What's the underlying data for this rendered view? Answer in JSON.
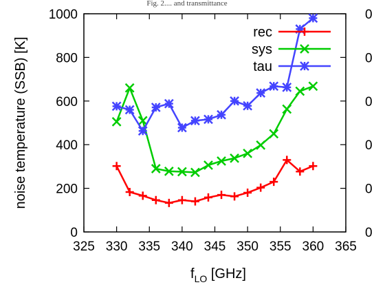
{
  "top_title_fragment": "Fig. 2.... and transmittance",
  "chart_data": {
    "type": "line",
    "xlabel": "f",
    "xlabel_sub": "LO",
    "xlabel_unit": " [GHz]",
    "ylabel": "noise temperature (SSB) [K]",
    "xlim": [
      325,
      365
    ],
    "ylim": [
      0,
      1000
    ],
    "x_ticks": [
      325,
      330,
      335,
      340,
      345,
      350,
      355,
      360,
      365
    ],
    "y_ticks": [
      0,
      200,
      400,
      600,
      800,
      1000
    ],
    "right_tick_labels": [
      "0",
      "0",
      "0",
      "0",
      "0",
      "0"
    ],
    "grid": false,
    "legend_position": "top-right",
    "series": [
      {
        "name": "rec",
        "color": "#ff0000",
        "marker": "plus",
        "x": [
          330,
          332,
          334,
          336,
          338,
          340,
          342,
          344,
          346,
          348,
          350,
          352,
          354,
          356,
          358,
          360
        ],
        "y": [
          302,
          183,
          166,
          146,
          133,
          146,
          140,
          158,
          170,
          163,
          180,
          203,
          230,
          330,
          277,
          302
        ]
      },
      {
        "name": "sys",
        "color": "#00cc00",
        "marker": "x",
        "x": [
          330,
          332,
          334,
          336,
          338,
          340,
          342,
          344,
          346,
          348,
          350,
          352,
          354,
          356,
          358,
          360
        ],
        "y": [
          505,
          660,
          510,
          290,
          278,
          276,
          273,
          306,
          325,
          338,
          360,
          398,
          450,
          563,
          645,
          668
        ]
      },
      {
        "name": "tau",
        "color": "#4444ff",
        "marker": "star",
        "x": [
          330,
          332,
          334,
          336,
          338,
          340,
          342,
          344,
          346,
          348,
          350,
          352,
          354,
          356,
          358,
          360
        ],
        "y": [
          576,
          560,
          463,
          571,
          588,
          478,
          510,
          516,
          537,
          600,
          578,
          637,
          668,
          663,
          930,
          980
        ]
      }
    ]
  }
}
